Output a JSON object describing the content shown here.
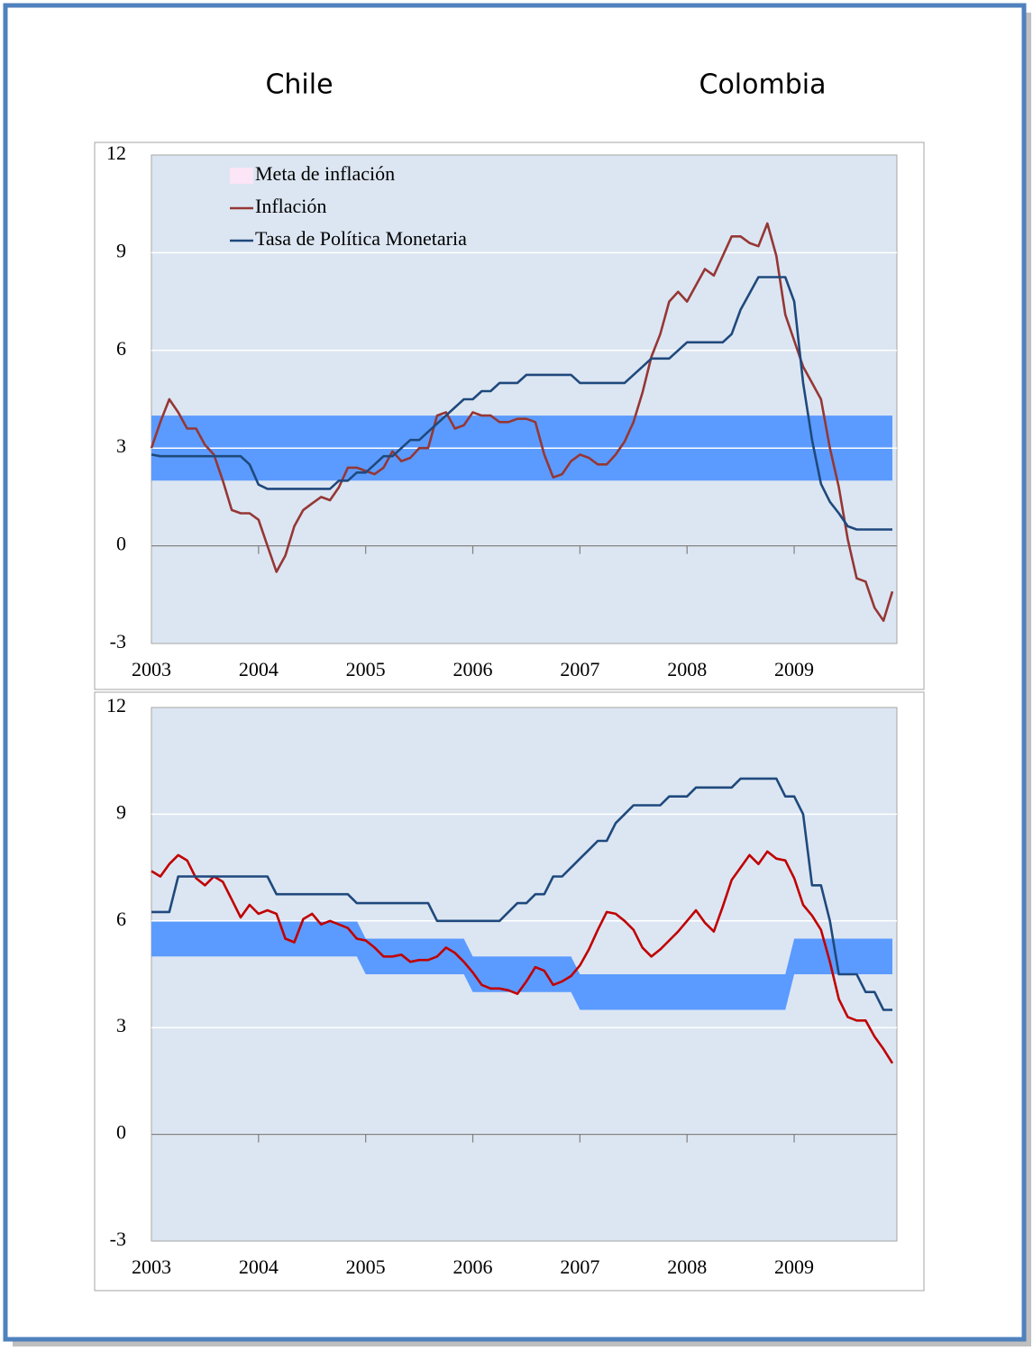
{
  "headings": [
    "Chile",
    "Colombia"
  ],
  "chart_data": [
    {
      "type": "line",
      "categories": [
        "2003",
        null,
        null,
        null,
        null,
        null,
        null,
        null,
        null,
        null,
        null,
        null,
        "2004",
        null,
        null,
        null,
        null,
        null,
        null,
        null,
        null,
        null,
        null,
        null,
        "2005",
        null,
        null,
        null,
        null,
        null,
        null,
        null,
        null,
        null,
        null,
        null,
        "2006",
        null,
        null,
        null,
        null,
        null,
        null,
        null,
        null,
        null,
        null,
        null,
        "2007",
        null,
        null,
        null,
        null,
        null,
        null,
        null,
        null,
        null,
        null,
        null,
        "2008",
        null,
        null,
        null,
        null,
        null,
        null,
        null,
        null,
        null,
        null,
        null,
        "2009",
        null,
        null,
        null,
        null,
        null,
        null,
        null,
        null,
        null,
        null,
        null
      ],
      "ylim": [
        -3,
        12
      ],
      "yticks": [
        -3,
        0,
        3,
        6,
        9,
        12
      ],
      "grid": true,
      "legend": "top-left",
      "background": "#dce6f2",
      "series": [
        {
          "name": "Meta de inflación",
          "type": "band",
          "color": "#5b9bff",
          "legend_color": "#fbe5f6",
          "lower": [
            2,
            2,
            2,
            2,
            2,
            2,
            2,
            2,
            2,
            2,
            2,
            2,
            2,
            2,
            2,
            2,
            2,
            2,
            2,
            2,
            2,
            2,
            2,
            2,
            2,
            2,
            2,
            2,
            2,
            2,
            2,
            2,
            2,
            2,
            2,
            2,
            2,
            2,
            2,
            2,
            2,
            2,
            2,
            2,
            2,
            2,
            2,
            2,
            2,
            2,
            2,
            2,
            2,
            2,
            2,
            2,
            2,
            2,
            2,
            2,
            2,
            2,
            2,
            2,
            2,
            2,
            2,
            2,
            2,
            2,
            2,
            2,
            2,
            2,
            2,
            2,
            2,
            2,
            2,
            2,
            2,
            2,
            2,
            2
          ],
          "upper": [
            4,
            4,
            4,
            4,
            4,
            4,
            4,
            4,
            4,
            4,
            4,
            4,
            4,
            4,
            4,
            4,
            4,
            4,
            4,
            4,
            4,
            4,
            4,
            4,
            4,
            4,
            4,
            4,
            4,
            4,
            4,
            4,
            4,
            4,
            4,
            4,
            4,
            4,
            4,
            4,
            4,
            4,
            4,
            4,
            4,
            4,
            4,
            4,
            4,
            4,
            4,
            4,
            4,
            4,
            4,
            4,
            4,
            4,
            4,
            4,
            4,
            4,
            4,
            4,
            4,
            4,
            4,
            4,
            4,
            4,
            4,
            4,
            4,
            4,
            4,
            4,
            4,
            4,
            4,
            4,
            4,
            4,
            4,
            4
          ]
        },
        {
          "name": "Inflación",
          "color": "#953735",
          "values": [
            3.0,
            3.8,
            4.5,
            4.1,
            3.6,
            3.6,
            3.1,
            2.8,
            2.0,
            1.1,
            1.0,
            1.0,
            0.8,
            0.0,
            -0.8,
            -0.3,
            0.6,
            1.1,
            1.3,
            1.5,
            1.4,
            1.8,
            2.4,
            2.4,
            2.3,
            2.2,
            2.4,
            2.9,
            2.6,
            2.7,
            3.0,
            3.0,
            4.0,
            4.1,
            3.6,
            3.7,
            4.1,
            4.0,
            4.0,
            3.8,
            3.8,
            3.9,
            3.9,
            3.8,
            2.8,
            2.1,
            2.2,
            2.6,
            2.8,
            2.7,
            2.5,
            2.5,
            2.8,
            3.2,
            3.8,
            4.7,
            5.8,
            6.5,
            7.5,
            7.8,
            7.5,
            8.0,
            8.5,
            8.3,
            8.9,
            9.5,
            9.5,
            9.3,
            9.2,
            9.9,
            8.9,
            7.1,
            6.3,
            5.5,
            5.0,
            4.5,
            3.0,
            1.8,
            0.2,
            -1.0,
            -1.1,
            -1.9,
            -2.3,
            -1.4
          ]
        },
        {
          "name": "Tasa de Política Monetaria",
          "color": "#1f497d",
          "values": [
            2.8,
            2.75,
            2.75,
            2.75,
            2.75,
            2.75,
            2.75,
            2.75,
            2.75,
            2.75,
            2.75,
            2.5,
            1.88,
            1.75,
            1.75,
            1.75,
            1.75,
            1.75,
            1.75,
            1.75,
            1.75,
            2.0,
            2.0,
            2.25,
            2.25,
            2.5,
            2.75,
            2.75,
            3.0,
            3.25,
            3.25,
            3.5,
            3.75,
            4.0,
            4.25,
            4.5,
            4.5,
            4.75,
            4.75,
            5.0,
            5.0,
            5.0,
            5.25,
            5.25,
            5.25,
            5.25,
            5.25,
            5.25,
            5.0,
            5.0,
            5.0,
            5.0,
            5.0,
            5.0,
            5.25,
            5.5,
            5.75,
            5.75,
            5.75,
            6.0,
            6.25,
            6.25,
            6.25,
            6.25,
            6.25,
            6.5,
            7.25,
            7.75,
            8.25,
            8.25,
            8.25,
            8.25,
            7.5,
            5.0,
            3.25,
            1.9,
            1.35,
            1.0,
            0.6,
            0.5,
            0.5,
            0.5,
            0.5,
            0.5
          ]
        }
      ]
    },
    {
      "type": "line",
      "categories": [
        "2003",
        null,
        null,
        null,
        null,
        null,
        null,
        null,
        null,
        null,
        null,
        null,
        "2004",
        null,
        null,
        null,
        null,
        null,
        null,
        null,
        null,
        null,
        null,
        null,
        "2005",
        null,
        null,
        null,
        null,
        null,
        null,
        null,
        null,
        null,
        null,
        null,
        "2006",
        null,
        null,
        null,
        null,
        null,
        null,
        null,
        null,
        null,
        null,
        null,
        "2007",
        null,
        null,
        null,
        null,
        null,
        null,
        null,
        null,
        null,
        null,
        null,
        "2008",
        null,
        null,
        null,
        null,
        null,
        null,
        null,
        null,
        null,
        null,
        null,
        "2009",
        null,
        null,
        null,
        null,
        null,
        null,
        null,
        null,
        null,
        null,
        null
      ],
      "ylim": [
        -3,
        12
      ],
      "yticks": [
        -3,
        0,
        3,
        6,
        9,
        12
      ],
      "grid": true,
      "background": "#dce6f2",
      "series": [
        {
          "type": "band",
          "color": "#5b9bff",
          "lower": [
            5,
            5,
            5,
            5,
            5,
            5,
            5,
            5,
            5,
            5,
            5,
            5,
            5,
            5,
            5,
            5,
            5,
            5,
            5,
            5,
            5,
            5,
            5,
            5,
            4.5,
            4.5,
            4.5,
            4.5,
            4.5,
            4.5,
            4.5,
            4.5,
            4.5,
            4.5,
            4.5,
            4.5,
            4,
            4,
            4,
            4,
            4,
            4,
            4,
            4,
            4,
            4,
            4,
            4,
            3.5,
            3.5,
            3.5,
            3.5,
            3.5,
            3.5,
            3.5,
            3.5,
            3.5,
            3.5,
            3.5,
            3.5,
            3.5,
            3.5,
            3.5,
            3.5,
            3.5,
            3.5,
            3.5,
            3.5,
            3.5,
            3.5,
            3.5,
            3.5,
            4.5,
            4.5,
            4.5,
            4.5,
            4.5,
            4.5,
            4.5,
            4.5,
            4.5,
            4.5,
            4.5,
            4.5
          ],
          "upper": [
            6,
            6,
            6,
            6,
            6,
            6,
            6,
            6,
            6,
            6,
            6,
            6,
            6,
            6,
            6,
            6,
            6,
            6,
            6,
            6,
            6,
            6,
            6,
            6,
            5.5,
            5.5,
            5.5,
            5.5,
            5.5,
            5.5,
            5.5,
            5.5,
            5.5,
            5.5,
            5.5,
            5.5,
            5,
            5,
            5,
            5,
            5,
            5,
            5,
            5,
            5,
            5,
            5,
            5,
            4.5,
            4.5,
            4.5,
            4.5,
            4.5,
            4.5,
            4.5,
            4.5,
            4.5,
            4.5,
            4.5,
            4.5,
            4.5,
            4.5,
            4.5,
            4.5,
            4.5,
            4.5,
            4.5,
            4.5,
            4.5,
            4.5,
            4.5,
            4.5,
            5.5,
            5.5,
            5.5,
            5.5,
            5.5,
            5.5,
            5.5,
            5.5,
            5.5,
            5.5,
            5.5,
            5.5
          ]
        },
        {
          "color": "#c00000",
          "values": [
            7.4,
            7.25,
            7.6,
            7.85,
            7.7,
            7.2,
            7.0,
            7.25,
            7.1,
            6.6,
            6.1,
            6.45,
            6.2,
            6.3,
            6.2,
            5.5,
            5.4,
            6.05,
            6.2,
            5.9,
            6.0,
            5.9,
            5.8,
            5.5,
            5.45,
            5.25,
            5.0,
            5.0,
            5.05,
            4.85,
            4.9,
            4.9,
            5.0,
            5.25,
            5.1,
            4.85,
            4.55,
            4.2,
            4.1,
            4.1,
            4.05,
            3.95,
            4.3,
            4.7,
            4.6,
            4.2,
            4.3,
            4.45,
            4.75,
            5.2,
            5.75,
            6.25,
            6.2,
            6.0,
            5.75,
            5.25,
            5.0,
            5.2,
            5.45,
            5.7,
            6.0,
            6.3,
            5.95,
            5.7,
            6.4,
            7.15,
            7.5,
            7.85,
            7.6,
            7.95,
            7.75,
            7.7,
            7.2,
            6.45,
            6.15,
            5.75,
            4.85,
            3.8,
            3.3,
            3.2,
            3.2,
            2.75,
            2.4,
            2.0
          ]
        },
        {
          "color": "#1f497d",
          "values": [
            6.25,
            6.25,
            6.25,
            7.25,
            7.25,
            7.25,
            7.25,
            7.25,
            7.25,
            7.25,
            7.25,
            7.25,
            7.25,
            7.25,
            6.75,
            6.75,
            6.75,
            6.75,
            6.75,
            6.75,
            6.75,
            6.75,
            6.75,
            6.5,
            6.5,
            6.5,
            6.5,
            6.5,
            6.5,
            6.5,
            6.5,
            6.5,
            6.0,
            6.0,
            6.0,
            6.0,
            6.0,
            6.0,
            6.0,
            6.0,
            6.25,
            6.5,
            6.5,
            6.75,
            6.75,
            7.25,
            7.25,
            7.5,
            7.75,
            8.0,
            8.25,
            8.25,
            8.75,
            9.0,
            9.25,
            9.25,
            9.25,
            9.25,
            9.5,
            9.5,
            9.5,
            9.75,
            9.75,
            9.75,
            9.75,
            9.75,
            10.0,
            10.0,
            10.0,
            10.0,
            10.0,
            9.5,
            9.5,
            9.0,
            7.0,
            7.0,
            6.0,
            4.5,
            4.5,
            4.5,
            4.0,
            4.0,
            3.5,
            3.5
          ]
        }
      ]
    }
  ]
}
